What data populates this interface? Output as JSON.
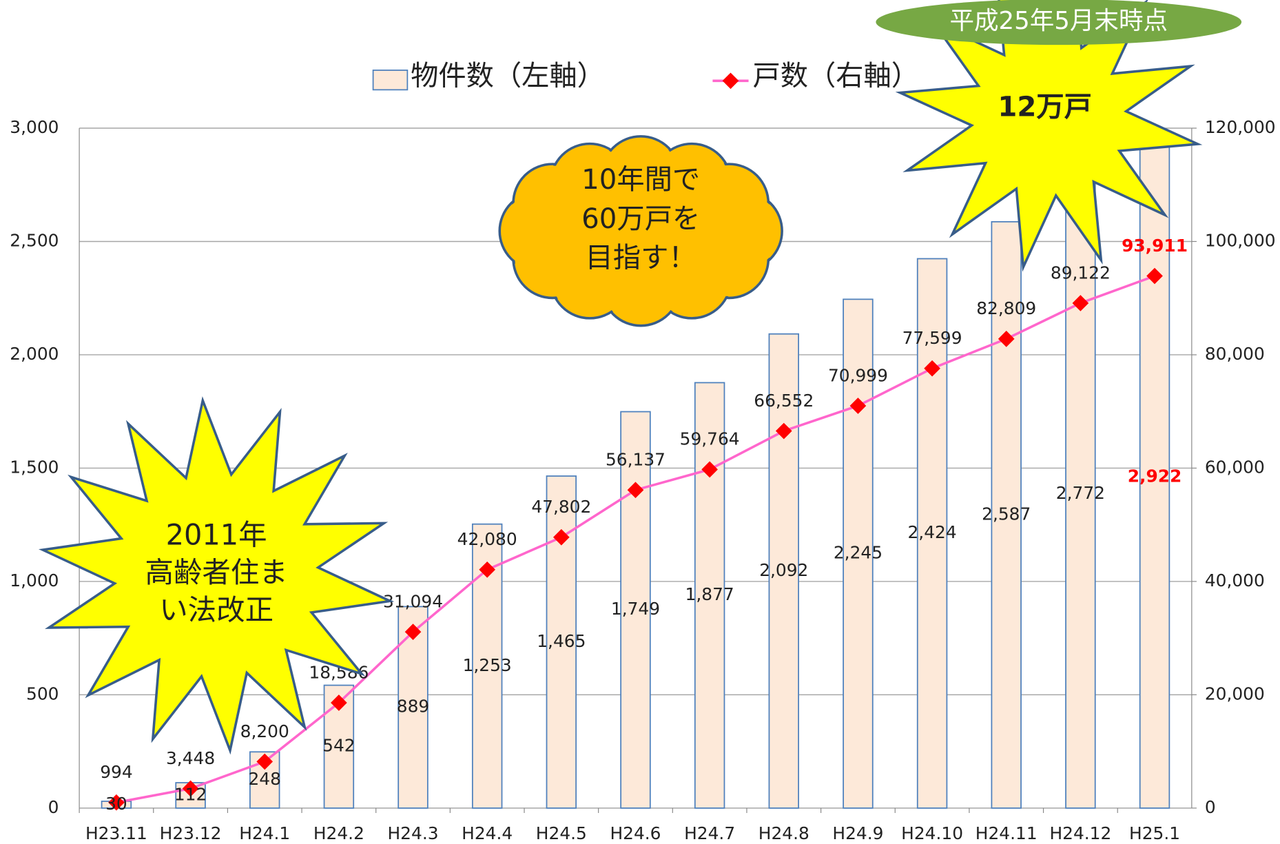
{
  "chart_data": {
    "type": "bar",
    "categories": [
      "H23.11",
      "H23.12",
      "H24.1",
      "H24.2",
      "H24.3",
      "H24.4",
      "H24.5",
      "H24.6",
      "H24.7",
      "H24.8",
      "H24.9",
      "H24.10",
      "H24.11",
      "H24.12",
      "H25.1"
    ],
    "series": [
      {
        "name": "物件数（左軸）",
        "type": "bar",
        "color": "#fde9d9",
        "edge_color": "#4f81bd",
        "values": [
          30,
          112,
          248,
          542,
          889,
          1253,
          1465,
          1749,
          1877,
          2092,
          2245,
          2424,
          2587,
          2772,
          2922
        ],
        "value_labels": [
          "30",
          "112",
          "248",
          "542",
          "889",
          "1,253",
          "1,465",
          "1,749",
          "1,877",
          "2,092",
          "2,245",
          "2,424",
          "2,587",
          "2,772",
          "2,922"
        ]
      },
      {
        "name": "戸数（右軸）",
        "type": "line",
        "axis": "y2",
        "color": "#ff66cc",
        "marker_color": "#ff0000",
        "values": [
          994,
          3448,
          8200,
          18586,
          31094,
          42080,
          47802,
          56137,
          59764,
          66552,
          70999,
          77599,
          82809,
          89122,
          93911
        ],
        "value_labels": [
          "994",
          "3,448",
          "8,200",
          "18,586",
          "31,094",
          "42,080",
          "47,802",
          "56,137",
          "59,764",
          "66,552",
          "70,999",
          "77,599",
          "82,809",
          "89,122",
          "93,911"
        ]
      }
    ],
    "ylim": [
      0,
      3000
    ],
    "yticks": [
      0,
      500,
      {
        "value": 1000,
        "label": "1,000"
      },
      {
        "value": 1500,
        "label": "1,500"
      },
      {
        "value": 2000,
        "label": "2,000"
      },
      {
        "value": 2500,
        "label": "2,500"
      },
      {
        "value": 3000,
        "label": "3,000"
      }
    ],
    "y2lim": [
      0,
      120000
    ],
    "y2ticks": [
      0,
      {
        "value": 20000,
        "label": "20,000"
      },
      {
        "value": 40000,
        "label": "40,000"
      },
      {
        "value": 60000,
        "label": "60,000"
      },
      {
        "value": 80000,
        "label": "80,000"
      },
      {
        "value": 100000,
        "label": "100,000"
      },
      {
        "value": 120000,
        "label": "120,000"
      }
    ],
    "grid": true,
    "legend": "top",
    "annotations": {
      "date_note": "平成25年5月末時点",
      "burst_right": "12万戸",
      "cloud": [
        "10年間で",
        "60万戸を",
        "目指す！"
      ],
      "burst_left": [
        "2011年",
        "高齢者住ま",
        "い法改正"
      ]
    }
  }
}
